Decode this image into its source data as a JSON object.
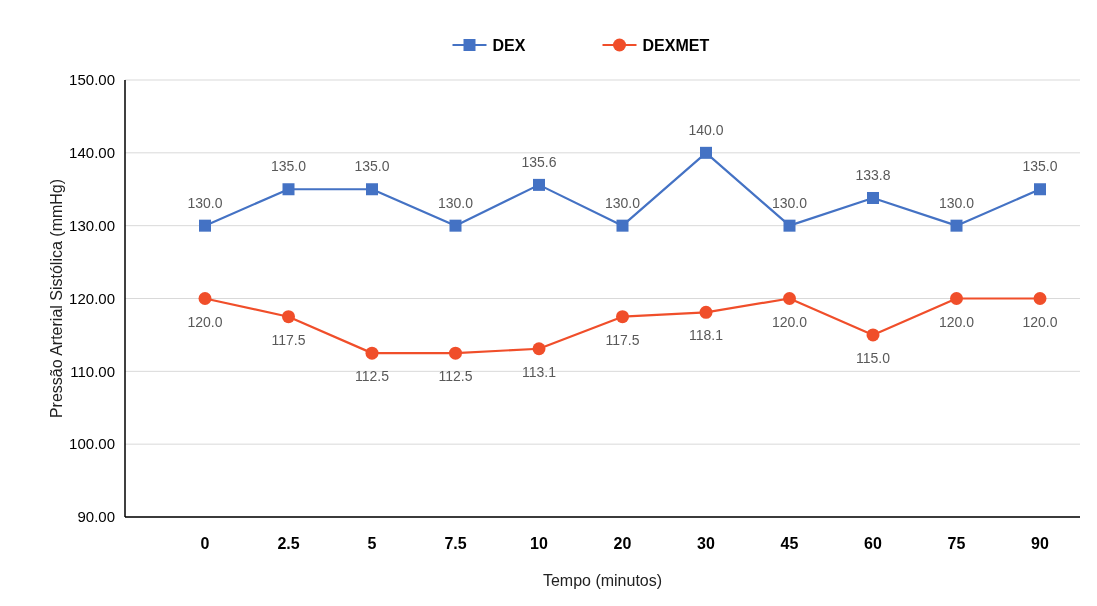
{
  "chart_data": {
    "type": "line",
    "xlabel": "Tempo (minutos)",
    "ylabel": "Pressão Arterial Sistólica (mmHg)",
    "categories": [
      "0",
      "2.5",
      "5",
      "7.5",
      "10",
      "20",
      "30",
      "45",
      "60",
      "75",
      "90"
    ],
    "series": [
      {
        "name": "DEX",
        "color": "#4472c4",
        "marker": "square",
        "values": [
          130,
          135,
          135,
          130,
          135.6,
          130,
          140,
          130,
          133.8,
          130,
          135
        ],
        "value_labels": [
          "130.0",
          "135.0",
          "135.0",
          "130.0",
          "135.6",
          "130.0",
          "140.0",
          "130.0",
          "133.8",
          "130.0",
          "135.0"
        ]
      },
      {
        "name": "DEXMET",
        "color": "#f04e2a",
        "marker": "circle",
        "values": [
          120,
          117.5,
          112.5,
          112.5,
          113.1,
          117.5,
          118.1,
          120,
          115,
          120,
          120
        ],
        "value_labels": [
          "120.0",
          "117.5",
          "112.5",
          "112.5",
          "113.1",
          "117.5",
          "118.1",
          "120.0",
          "115.0",
          "120.0",
          "120.0"
        ]
      }
    ],
    "ylim": [
      90,
      150
    ],
    "yticks": [
      {
        "value": 90,
        "label": "90.00"
      },
      {
        "value": 100,
        "label": "100.00"
      },
      {
        "value": 110,
        "label": "110.00"
      },
      {
        "value": 120,
        "label": "120.00"
      },
      {
        "value": 130,
        "label": "130.00"
      },
      {
        "value": 140,
        "label": "140.00"
      },
      {
        "value": 150,
        "label": "150.00"
      }
    ],
    "grid": "y",
    "legend": "top",
    "line_style": "solid"
  }
}
